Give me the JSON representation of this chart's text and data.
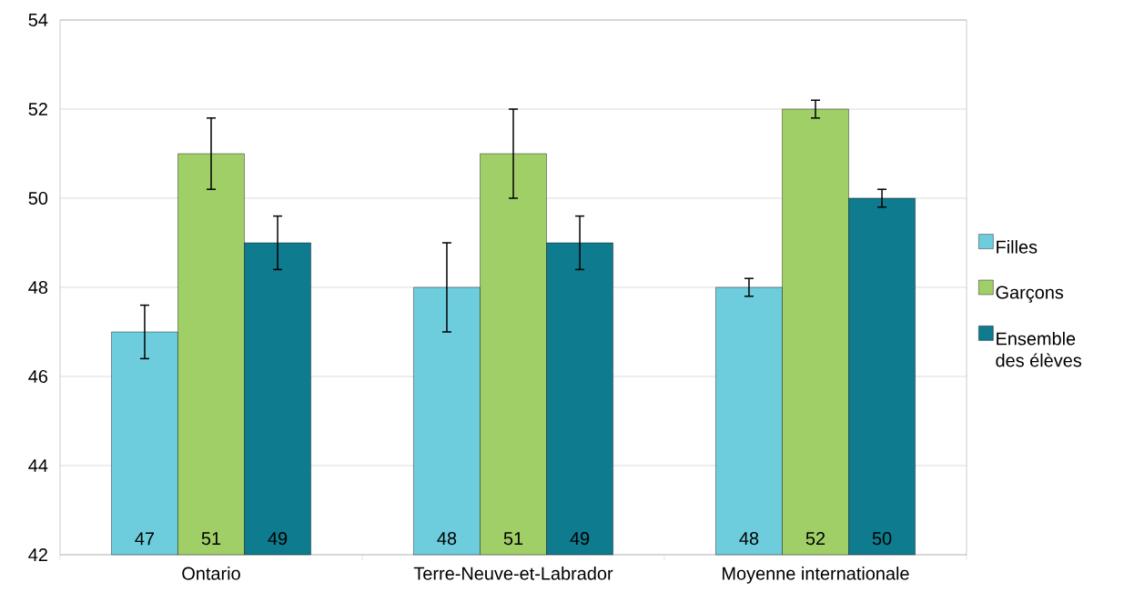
{
  "chart_data": {
    "type": "bar",
    "categories": [
      "Ontario",
      "Terre-Neuve-et-Labrador",
      "Moyenne internationale"
    ],
    "series": [
      {
        "name": "Filles",
        "color": "#6dcddc",
        "values": [
          47,
          48,
          48
        ],
        "errors": [
          0.6,
          1.0,
          0.2
        ]
      },
      {
        "name": "Garçons",
        "color": "#a0cf67",
        "values": [
          51,
          51,
          52
        ],
        "errors": [
          0.8,
          1.0,
          0.2
        ]
      },
      {
        "name": "Ensemble des élèves",
        "color": "#0e7b8f",
        "values": [
          49,
          49,
          50
        ],
        "errors": [
          0.6,
          0.6,
          0.2
        ]
      }
    ],
    "ylim": [
      42,
      54
    ],
    "yticks": [
      42,
      44,
      46,
      48,
      50,
      52,
      54
    ],
    "grid": "y",
    "legend": "right",
    "data_labels": true
  }
}
